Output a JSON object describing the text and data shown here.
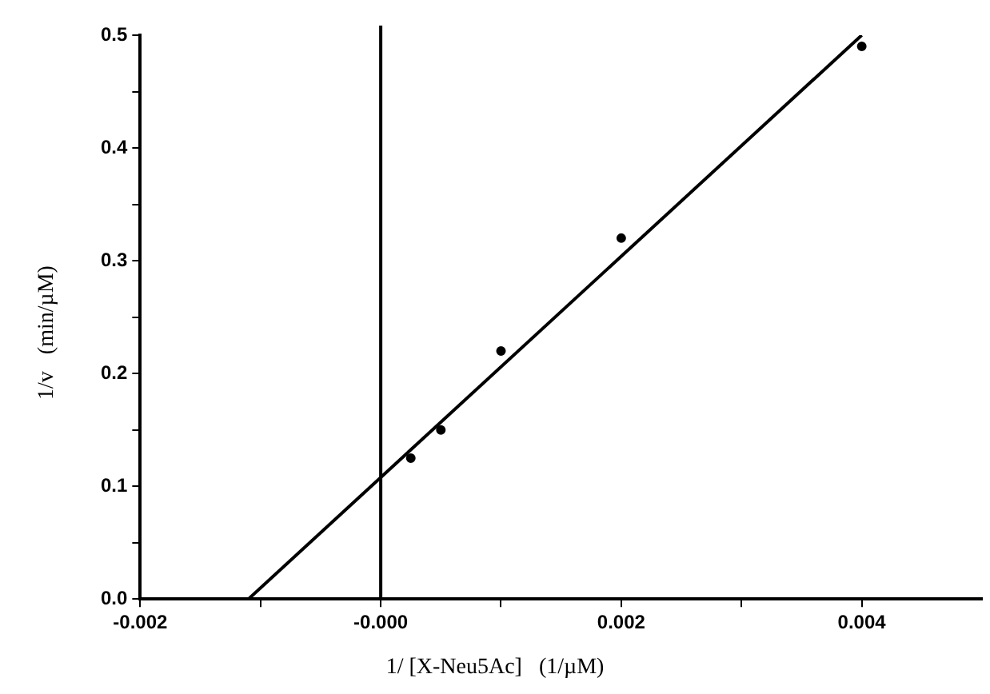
{
  "chart_data": {
    "type": "scatter",
    "xlabel": "1/ [X-Neu5Ac]   (1/µM)",
    "ylabel": "1/v   (min/µM)",
    "xlim": [
      -0.002,
      0.005
    ],
    "ylim": [
      0,
      0.5
    ],
    "xticks": [
      {
        "value": -0.002,
        "label": "-0.002"
      },
      {
        "value": -0.001,
        "label": null
      },
      {
        "value": 0,
        "label": "-0.000"
      },
      {
        "value": 0.001,
        "label": null
      },
      {
        "value": 0.002,
        "label": "0.002"
      },
      {
        "value": 0.003,
        "label": null
      },
      {
        "value": 0.004,
        "label": "0.004"
      }
    ],
    "yticks": [
      {
        "value": 0,
        "label": "0.0"
      },
      {
        "value": 0.05,
        "label": null
      },
      {
        "value": 0.1,
        "label": "0.1"
      },
      {
        "value": 0.15,
        "label": null
      },
      {
        "value": 0.2,
        "label": "0.2"
      },
      {
        "value": 0.25,
        "label": null
      },
      {
        "value": 0.3,
        "label": "0.3"
      },
      {
        "value": 0.35,
        "label": null
      },
      {
        "value": 0.4,
        "label": "0.4"
      },
      {
        "value": 0.45,
        "label": null
      },
      {
        "value": 0.5,
        "label": "0.5"
      }
    ],
    "grid": false,
    "legend": false,
    "ref_lines": [
      {
        "axis": "x",
        "value": 0,
        "label": null,
        "color": "#000000"
      }
    ],
    "series": [
      {
        "color": "#000000",
        "marker": "circle",
        "x": [
          0.00025,
          0.0005,
          0.001,
          0.002,
          0.004
        ],
        "values": [
          0.125,
          0.15,
          0.22,
          0.32,
          0.49
        ]
      },
      {
        "type": "line",
        "color": "#000000",
        "marker": "none",
        "line_style": "solid",
        "x": [
          -0.0011,
          0.004
        ],
        "values": [
          0,
          0.5
        ]
      }
    ]
  }
}
